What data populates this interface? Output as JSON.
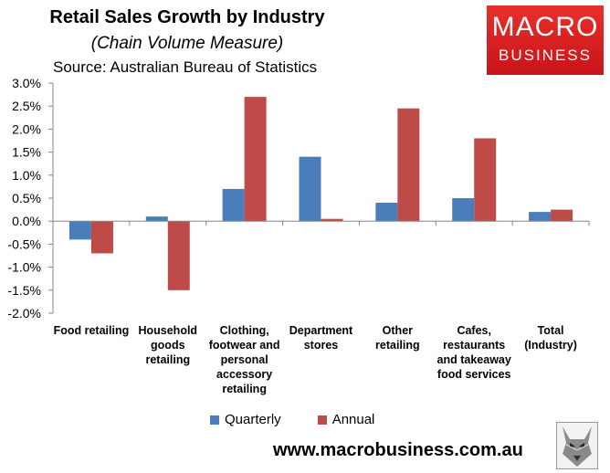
{
  "header": {
    "title": "Retail Sales Growth by Industry",
    "subtitle": "(Chain Volume Measure)",
    "source": "Source: Australian Bureau of Statistics"
  },
  "logo": {
    "line1": "MACRO",
    "line2": "BUSINESS"
  },
  "footer": {
    "website": "www.macrobusiness.com.au"
  },
  "chart_data": {
    "type": "bar",
    "title": "Retail Sales Growth by Industry",
    "subtitle": "(Chain Volume Measure)",
    "categories": [
      "Food retailing",
      "Household\ngoods\nretailing",
      "Clothing,\nfootwear and\npersonal\naccessory\nretailing",
      "Department\nstores",
      "Other\nretailing",
      "Cafes,\nrestaurants\nand takeaway\nfood services",
      "Total\n(Industry)"
    ],
    "series": [
      {
        "name": "Quarterly",
        "color": "#4a7ebb",
        "values": [
          -0.4,
          0.1,
          0.7,
          1.4,
          0.4,
          0.5,
          0.2
        ]
      },
      {
        "name": "Annual",
        "color": "#be4b48",
        "values": [
          -0.7,
          -1.5,
          2.7,
          0.05,
          2.45,
          1.8,
          0.25
        ]
      }
    ],
    "ylim": [
      -2.0,
      3.0
    ],
    "yticks": [
      "3.0%",
      "2.5%",
      "2.0%",
      "1.5%",
      "1.0%",
      "0.5%",
      "0.0%",
      "-0.5%",
      "-1.0%",
      "-1.5%",
      "-2.0%"
    ],
    "ytick_values": [
      3.0,
      2.5,
      2.0,
      1.5,
      1.0,
      0.5,
      0.0,
      -0.5,
      -1.0,
      -1.5,
      -2.0
    ],
    "xlabel": "",
    "ylabel": "",
    "legend": "bottom",
    "grid": false
  }
}
